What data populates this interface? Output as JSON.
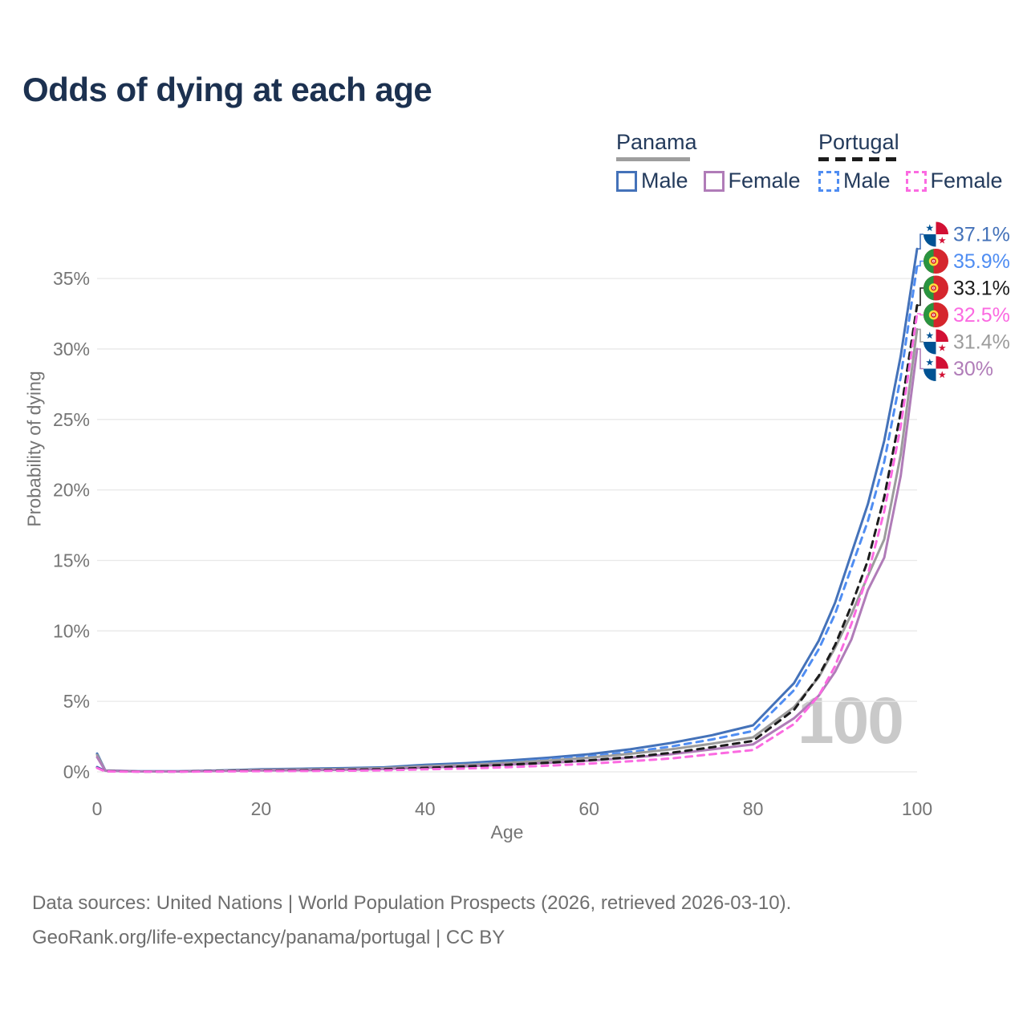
{
  "title": "Odds of dying at each age",
  "watermark": "100",
  "legend": {
    "groups": [
      {
        "label": "Panama",
        "line_style": "solid",
        "underline_color": "#9e9e9e",
        "items": [
          {
            "label": "Male",
            "color": "#4472b9"
          },
          {
            "label": "Female",
            "color": "#b07cb8"
          }
        ]
      },
      {
        "label": "Portugal",
        "line_style": "dashed",
        "underline_color": "#1c1c1c",
        "items": [
          {
            "label": "Male",
            "color": "#4f8df2"
          },
          {
            "label": "Female",
            "color": "#fb6ae1"
          }
        ]
      }
    ]
  },
  "chart_data": {
    "type": "line",
    "title": "Odds of dying at each age",
    "xlabel": "Age",
    "ylabel": "Probability of dying",
    "xlim": [
      0,
      100
    ],
    "ylim": [
      0,
      38
    ],
    "grid": "horizontal",
    "xticks": [
      0,
      20,
      40,
      60,
      80,
      100
    ],
    "yticks": [
      "0%",
      "5%",
      "10%",
      "15%",
      "20%",
      "25%",
      "30%",
      "35%"
    ],
    "ages": [
      0,
      1,
      5,
      10,
      15,
      20,
      25,
      30,
      35,
      40,
      45,
      50,
      55,
      60,
      65,
      70,
      75,
      80,
      85,
      88,
      90,
      92,
      94,
      96,
      98,
      100
    ],
    "series": [
      {
        "id": "panama-male",
        "name": "Panama Male",
        "flag": "panama",
        "color": "#4472b9",
        "dash": "solid",
        "end_label": "37.1%",
        "values": [
          1.3,
          0.1,
          0.04,
          0.04,
          0.1,
          0.18,
          0.22,
          0.26,
          0.32,
          0.5,
          0.62,
          0.8,
          1.0,
          1.25,
          1.6,
          2.05,
          2.6,
          3.3,
          6.3,
          9.3,
          12.0,
          15.5,
          19.0,
          23.5,
          29.5,
          37.1
        ]
      },
      {
        "id": "portugal-male",
        "name": "Portugal Male",
        "flag": "portugal",
        "color": "#4f8df2",
        "dash": "dashed",
        "end_label": "35.9%",
        "values": [
          0.35,
          0.05,
          0.02,
          0.02,
          0.06,
          0.12,
          0.15,
          0.18,
          0.25,
          0.4,
          0.52,
          0.68,
          0.88,
          1.1,
          1.4,
          1.8,
          2.3,
          2.9,
          5.8,
          8.7,
          11.2,
          14.5,
          17.8,
          22.0,
          28.0,
          35.9
        ]
      },
      {
        "id": "portugal-total",
        "name": "Portugal",
        "flag": "portugal",
        "color": "#1c1c1c",
        "dash": "dashed",
        "end_label": "33.1%",
        "values": [
          0.3,
          0.04,
          0.02,
          0.02,
          0.05,
          0.08,
          0.1,
          0.13,
          0.18,
          0.28,
          0.38,
          0.5,
          0.65,
          0.82,
          1.05,
          1.35,
          1.75,
          2.2,
          4.4,
          6.8,
          9.0,
          11.8,
          15.0,
          19.5,
          25.5,
          33.1
        ]
      },
      {
        "id": "portugal-female",
        "name": "Portugal Female",
        "flag": "portugal",
        "color": "#fb6ae1",
        "dash": "dashed",
        "end_label": "32.5%",
        "values": [
          0.28,
          0.03,
          0.01,
          0.01,
          0.03,
          0.05,
          0.06,
          0.08,
          0.11,
          0.18,
          0.24,
          0.33,
          0.44,
          0.58,
          0.75,
          0.95,
          1.25,
          1.55,
          3.4,
          5.4,
          7.5,
          10.5,
          14.0,
          18.5,
          24.5,
          32.5
        ]
      },
      {
        "id": "panama-total",
        "name": "Panama",
        "flag": "panama",
        "color": "#9c9c9c",
        "dash": "solid",
        "end_label": "31.4%",
        "values": [
          1.2,
          0.09,
          0.03,
          0.03,
          0.08,
          0.14,
          0.17,
          0.2,
          0.26,
          0.4,
          0.5,
          0.64,
          0.8,
          1.0,
          1.28,
          1.6,
          2.0,
          2.45,
          4.6,
          6.7,
          8.8,
          11.2,
          13.9,
          16.5,
          22.5,
          31.4
        ]
      },
      {
        "id": "panama-female",
        "name": "Panama Female",
        "flag": "panama",
        "color": "#b07cb8",
        "dash": "solid",
        "end_label": "30%",
        "values": [
          1.05,
          0.08,
          0.03,
          0.03,
          0.06,
          0.1,
          0.12,
          0.15,
          0.2,
          0.31,
          0.4,
          0.51,
          0.63,
          0.79,
          1.0,
          1.25,
          1.6,
          1.95,
          3.8,
          5.4,
          7.1,
          9.4,
          12.9,
          15.2,
          21.0,
          30.0
        ]
      }
    ],
    "legend_position": "top-right"
  },
  "footer": {
    "line1": "Data sources: United Nations | World Population Prospects (2026, retrieved 2026-03-10).",
    "line2": "GeoRank.org/life-expectancy/panama/portugal | CC BY"
  }
}
